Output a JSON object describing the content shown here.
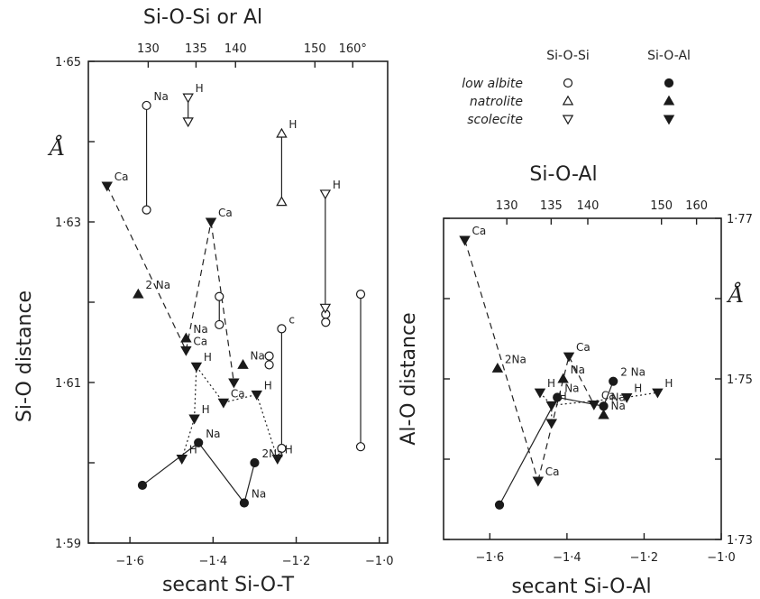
{
  "chart_data": [
    {
      "type": "scatter",
      "xlabel": "secant Si-O-T",
      "ylabel": "Si-O distance",
      "unit_label": "Å",
      "top_axis_label": "Si-O-Si or Al",
      "xlim": [
        -1.7,
        -0.98
      ],
      "ylim": [
        1.59,
        1.65
      ],
      "x_ticks": [
        {
          "value": -1.6,
          "label": "−1·6"
        },
        {
          "value": -1.4,
          "label": "−1·4"
        },
        {
          "value": -1.2,
          "label": "−1·2"
        },
        {
          "value": -1.0,
          "label": "−1·0"
        }
      ],
      "y_ticks": [
        {
          "value": 1.59,
          "label": "1·59"
        },
        {
          "value": 1.61,
          "label": "1·61"
        },
        {
          "value": 1.63,
          "label": "1·63"
        },
        {
          "value": 1.65,
          "label": "1·65"
        }
      ],
      "top_ticks": [
        {
          "value": -1.556,
          "label": "130"
        },
        {
          "value": -1.441,
          "label": "135"
        },
        {
          "value": -1.346,
          "label": "140"
        },
        {
          "value": -1.155,
          "label": "150"
        },
        {
          "value": -1.064,
          "label": "160°"
        }
      ],
      "series": [
        {
          "mineral": "low albite",
          "type": "Si-O-Si",
          "marker": "circle-open",
          "line": "solid",
          "points": [
            {
              "x": -1.56,
              "y": 1.6445,
              "label": "Na"
            },
            {
              "x": -1.56,
              "y": 1.6315,
              "label": ""
            },
            {
              "x": -1.385,
              "y": 1.6207,
              "label": ""
            },
            {
              "x": -1.385,
              "y": 1.6172,
              "label": ""
            },
            {
              "x": -1.235,
              "y": 1.6167,
              "label": "c"
            },
            {
              "x": -1.235,
              "y": 1.6018,
              "label": ""
            },
            {
              "x": -1.265,
              "y": 1.6133,
              "label": ""
            },
            {
              "x": -1.265,
              "y": 1.6122,
              "label": ""
            },
            {
              "x": -1.129,
              "y": 1.6185,
              "label": ""
            },
            {
              "x": -1.129,
              "y": 1.6175,
              "label": ""
            },
            {
              "x": -1.045,
              "y": 1.621,
              "label": ""
            },
            {
              "x": -1.045,
              "y": 1.602,
              "label": ""
            }
          ],
          "segments": [
            [
              0,
              1
            ],
            [
              2,
              3
            ],
            [
              4,
              5
            ],
            [
              10,
              11
            ]
          ]
        },
        {
          "mineral": "natrolite",
          "type": "Si-O-Si",
          "marker": "triangle-up-open",
          "line": "solid",
          "points": [
            {
              "x": -1.235,
              "y": 1.641,
              "label": "H"
            },
            {
              "x": -1.235,
              "y": 1.6325,
              "label": ""
            }
          ],
          "segments": [
            [
              0,
              1
            ]
          ]
        },
        {
          "mineral": "scolecite",
          "type": "Si-O-Si",
          "marker": "triangle-down-open",
          "line": "solid",
          "points": [
            {
              "x": -1.46,
              "y": 1.6455,
              "label": "H"
            },
            {
              "x": -1.46,
              "y": 1.6425,
              "label": ""
            },
            {
              "x": -1.13,
              "y": 1.6335,
              "label": "H"
            },
            {
              "x": -1.13,
              "y": 1.6193,
              "label": ""
            }
          ],
          "segments": [
            [
              0,
              1
            ],
            [
              2,
              3
            ]
          ]
        },
        {
          "mineral": "low albite",
          "type": "Si-O-Al",
          "marker": "circle-filled",
          "line": "solid",
          "points": [
            {
              "x": -1.57,
              "y": 1.5972,
              "label": ""
            },
            {
              "x": -1.435,
              "y": 1.6025,
              "label": "Na"
            },
            {
              "x": -1.325,
              "y": 1.595,
              "label": "Na"
            },
            {
              "x": -1.3,
              "y": 1.6,
              "label": "2Na"
            }
          ],
          "segments": [
            [
              0,
              1
            ],
            [
              1,
              2
            ],
            [
              2,
              3
            ]
          ]
        },
        {
          "mineral": "natrolite",
          "type": "Si-O-Al",
          "marker": "triangle-up-filled",
          "line": "none",
          "points": [
            {
              "x": -1.58,
              "y": 1.621,
              "label": "2 Na"
            },
            {
              "x": -1.465,
              "y": 1.6155,
              "label": "Na"
            },
            {
              "x": -1.328,
              "y": 1.6122,
              "label": "Na"
            }
          ],
          "segments": []
        },
        {
          "mineral": "scolecite",
          "type": "Si-O-Al",
          "marker": "triangle-down-filled",
          "line": "dashed",
          "points": [
            {
              "x": -1.655,
              "y": 1.6345,
              "label": "Ca"
            },
            {
              "x": -1.465,
              "y": 1.614,
              "label": "Ca"
            },
            {
              "x": -1.405,
              "y": 1.63,
              "label": "Ca"
            },
            {
              "x": -1.35,
              "y": 1.61,
              "label": ""
            }
          ],
          "segments": [
            [
              0,
              1
            ],
            [
              1,
              2
            ],
            [
              2,
              3
            ]
          ]
        },
        {
          "mineral": "scolecite",
          "type": "Si-O-Al",
          "marker": "triangle-down-filled",
          "line": "dotted",
          "points": [
            {
              "x": -1.44,
              "y": 1.612,
              "label": "H"
            },
            {
              "x": -1.445,
              "y": 1.6055,
              "label": "H"
            },
            {
              "x": -1.475,
              "y": 1.6005,
              "label": "H"
            },
            {
              "x": -1.375,
              "y": 1.6075,
              "label": "Ca"
            },
            {
              "x": -1.295,
              "y": 1.6085,
              "label": "H"
            },
            {
              "x": -1.245,
              "y": 1.6005,
              "label": "H"
            }
          ],
          "segments": [
            [
              0,
              1
            ],
            [
              1,
              2
            ],
            [
              0,
              3
            ],
            [
              3,
              4
            ],
            [
              4,
              5
            ]
          ]
        }
      ]
    },
    {
      "type": "scatter",
      "xlabel": "secant Si-O-Al",
      "ylabel": "Al-O distance",
      "unit_label": "Å",
      "top_axis_label": "Si-O-Al",
      "xlim": [
        -1.72,
        -1.0
      ],
      "ylim": [
        1.73,
        1.77
      ],
      "x_ticks": [
        {
          "value": -1.6,
          "label": "−1·6"
        },
        {
          "value": -1.4,
          "label": "−1·4"
        },
        {
          "value": -1.2,
          "label": "−1·2"
        },
        {
          "value": -1.0,
          "label": "−1·0"
        }
      ],
      "y_ticks": [
        {
          "value": 1.73,
          "label": "1·73"
        },
        {
          "value": 1.75,
          "label": "1·75"
        },
        {
          "value": 1.77,
          "label": "1·77"
        }
      ],
      "top_ticks": [
        {
          "value": -1.556,
          "label": "130"
        },
        {
          "value": -1.441,
          "label": "135"
        },
        {
          "value": -1.346,
          "label": "140"
        },
        {
          "value": -1.155,
          "label": "150"
        },
        {
          "value": -1.064,
          "label": "160"
        }
      ],
      "series": [
        {
          "mineral": "low albite",
          "type": "Si-O-Al",
          "marker": "circle-filled",
          "line": "solid",
          "points": [
            {
              "x": -1.575,
              "y": 1.7343,
              "label": ""
            },
            {
              "x": -1.425,
              "y": 1.7477,
              "label": "Na"
            },
            {
              "x": -1.305,
              "y": 1.7466,
              "label": "Na"
            },
            {
              "x": -1.28,
              "y": 1.7497,
              "label": "2 Na"
            }
          ],
          "segments": [
            [
              0,
              1
            ],
            [
              1,
              2
            ],
            [
              2,
              3
            ]
          ]
        },
        {
          "mineral": "natrolite",
          "type": "Si-O-Al",
          "marker": "triangle-up-filled",
          "line": "none",
          "points": [
            {
              "x": -1.58,
              "y": 1.7513,
              "label": "2Na"
            },
            {
              "x": -1.41,
              "y": 1.75,
              "label": "Na"
            },
            {
              "x": -1.305,
              "y": 1.7455,
              "label": "Na"
            }
          ],
          "segments": []
        },
        {
          "mineral": "scolecite",
          "type": "Si-O-Al",
          "marker": "triangle-down-filled",
          "line": "dashed",
          "points": [
            {
              "x": -1.665,
              "y": 1.7673,
              "label": "Ca"
            },
            {
              "x": -1.475,
              "y": 1.7373,
              "label": "Ca"
            },
            {
              "x": -1.395,
              "y": 1.7528,
              "label": "Ca"
            },
            {
              "x": -1.33,
              "y": 1.7468,
              "label": "Ca"
            }
          ],
          "segments": [
            [
              0,
              1
            ],
            [
              1,
              2
            ],
            [
              2,
              3
            ]
          ]
        },
        {
          "mineral": "scolecite",
          "type": "Si-O-Al",
          "marker": "triangle-down-filled",
          "line": "dotted",
          "points": [
            {
              "x": -1.47,
              "y": 1.7483,
              "label": "H"
            },
            {
              "x": -1.44,
              "y": 1.7467,
              "label": "H"
            },
            {
              "x": -1.44,
              "y": 1.7445,
              "label": ""
            },
            {
              "x": -1.245,
              "y": 1.7477,
              "label": "H"
            },
            {
              "x": -1.165,
              "y": 1.7483,
              "label": "H"
            }
          ],
          "segments": [
            [
              0,
              1
            ],
            [
              1,
              2
            ],
            [
              1,
              3
            ],
            [
              3,
              4
            ]
          ]
        }
      ]
    }
  ],
  "legend": {
    "col1": "Si-O-Si",
    "col2": "Si-O-Al",
    "rows": [
      {
        "name": "low albite",
        "open": "circle-open",
        "filled": "circle-filled"
      },
      {
        "name": "natrolite",
        "open": "triangle-up-open",
        "filled": "triangle-up-filled"
      },
      {
        "name": "scolecite",
        "open": "triangle-down-open",
        "filled": "triangle-down-filled"
      }
    ]
  }
}
